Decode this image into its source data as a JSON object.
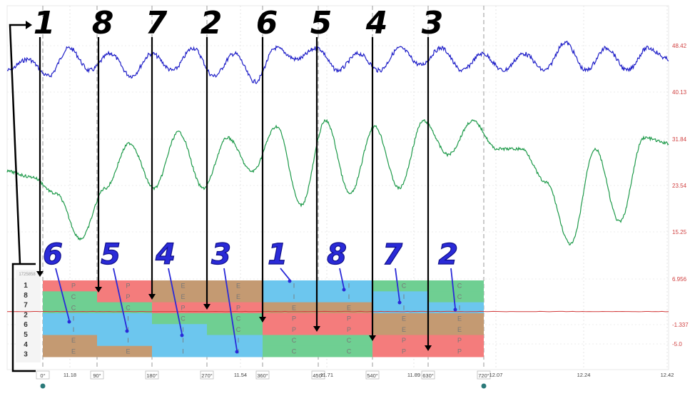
{
  "chart_data": {
    "type": "line",
    "title": "",
    "xlabel": "",
    "ylabel": "",
    "series": [
      {
        "values": [
          44,
          46,
          43,
          48,
          44,
          47,
          43,
          47,
          44,
          48,
          43,
          47,
          42,
          48,
          46,
          48,
          44,
          47,
          44,
          48,
          45,
          48,
          44,
          47,
          44,
          47,
          44,
          49,
          44,
          48,
          44,
          48,
          46
        ]
      },
      {
        "values": [
          26,
          25,
          22,
          14,
          23,
          31,
          23,
          33,
          23,
          32,
          26,
          34,
          20,
          35,
          22,
          34,
          23,
          35,
          29,
          35,
          30,
          30,
          24,
          13,
          30,
          17,
          32,
          31
        ]
      },
      {
        "values": [
          1,
          1,
          1,
          1
        ]
      }
    ],
    "y_ticks": [
      "48.42",
      "40.13",
      "31.84",
      "23.54",
      "15.25",
      "6.956",
      "-1.337",
      "-5.0"
    ],
    "time_ticks": [
      "11.18",
      "11.54",
      "11.71",
      "11.89",
      "12.07",
      "12.24",
      "12.42"
    ],
    "degree_ticks": [
      "0°",
      "90°",
      "180°",
      "270°",
      "360°",
      "450°",
      "540°",
      "630°",
      "720°"
    ],
    "black_markers": [
      "1",
      "8",
      "7",
      "2",
      "6",
      "5",
      "4",
      "3"
    ],
    "blue_markers": [
      "6",
      "5",
      "4",
      "3",
      "1",
      "8",
      "7",
      "2"
    ],
    "firing_order": [
      "1",
      "8",
      "7",
      "2",
      "6",
      "5",
      "4",
      "3"
    ],
    "strip_row_label": "1725858",
    "stroke_grid": [
      [
        "P",
        "P",
        "E",
        "E",
        "I",
        "I",
        "C",
        "C"
      ],
      [
        "C",
        "P",
        "E",
        "E",
        "I",
        "I",
        "I",
        "C"
      ],
      [
        "C",
        "C",
        "P",
        "P",
        "E",
        "E",
        "I",
        "I"
      ],
      [
        "I",
        "I",
        "C",
        "C",
        "P",
        "P",
        "E",
        "E"
      ],
      [
        "I",
        "I",
        "I",
        "C",
        "P",
        "P",
        "E",
        "E"
      ],
      [
        "E",
        "I",
        "I",
        "I",
        "C",
        "C",
        "P",
        "P"
      ],
      [
        "E",
        "E",
        "I",
        "I",
        "C",
        "C",
        "P",
        "P"
      ]
    ],
    "stroke_colors": {
      "P": "#f47c7c",
      "C": "#6fcf92",
      "I": "#6cc6ee",
      "E": "#c49a72"
    }
  }
}
